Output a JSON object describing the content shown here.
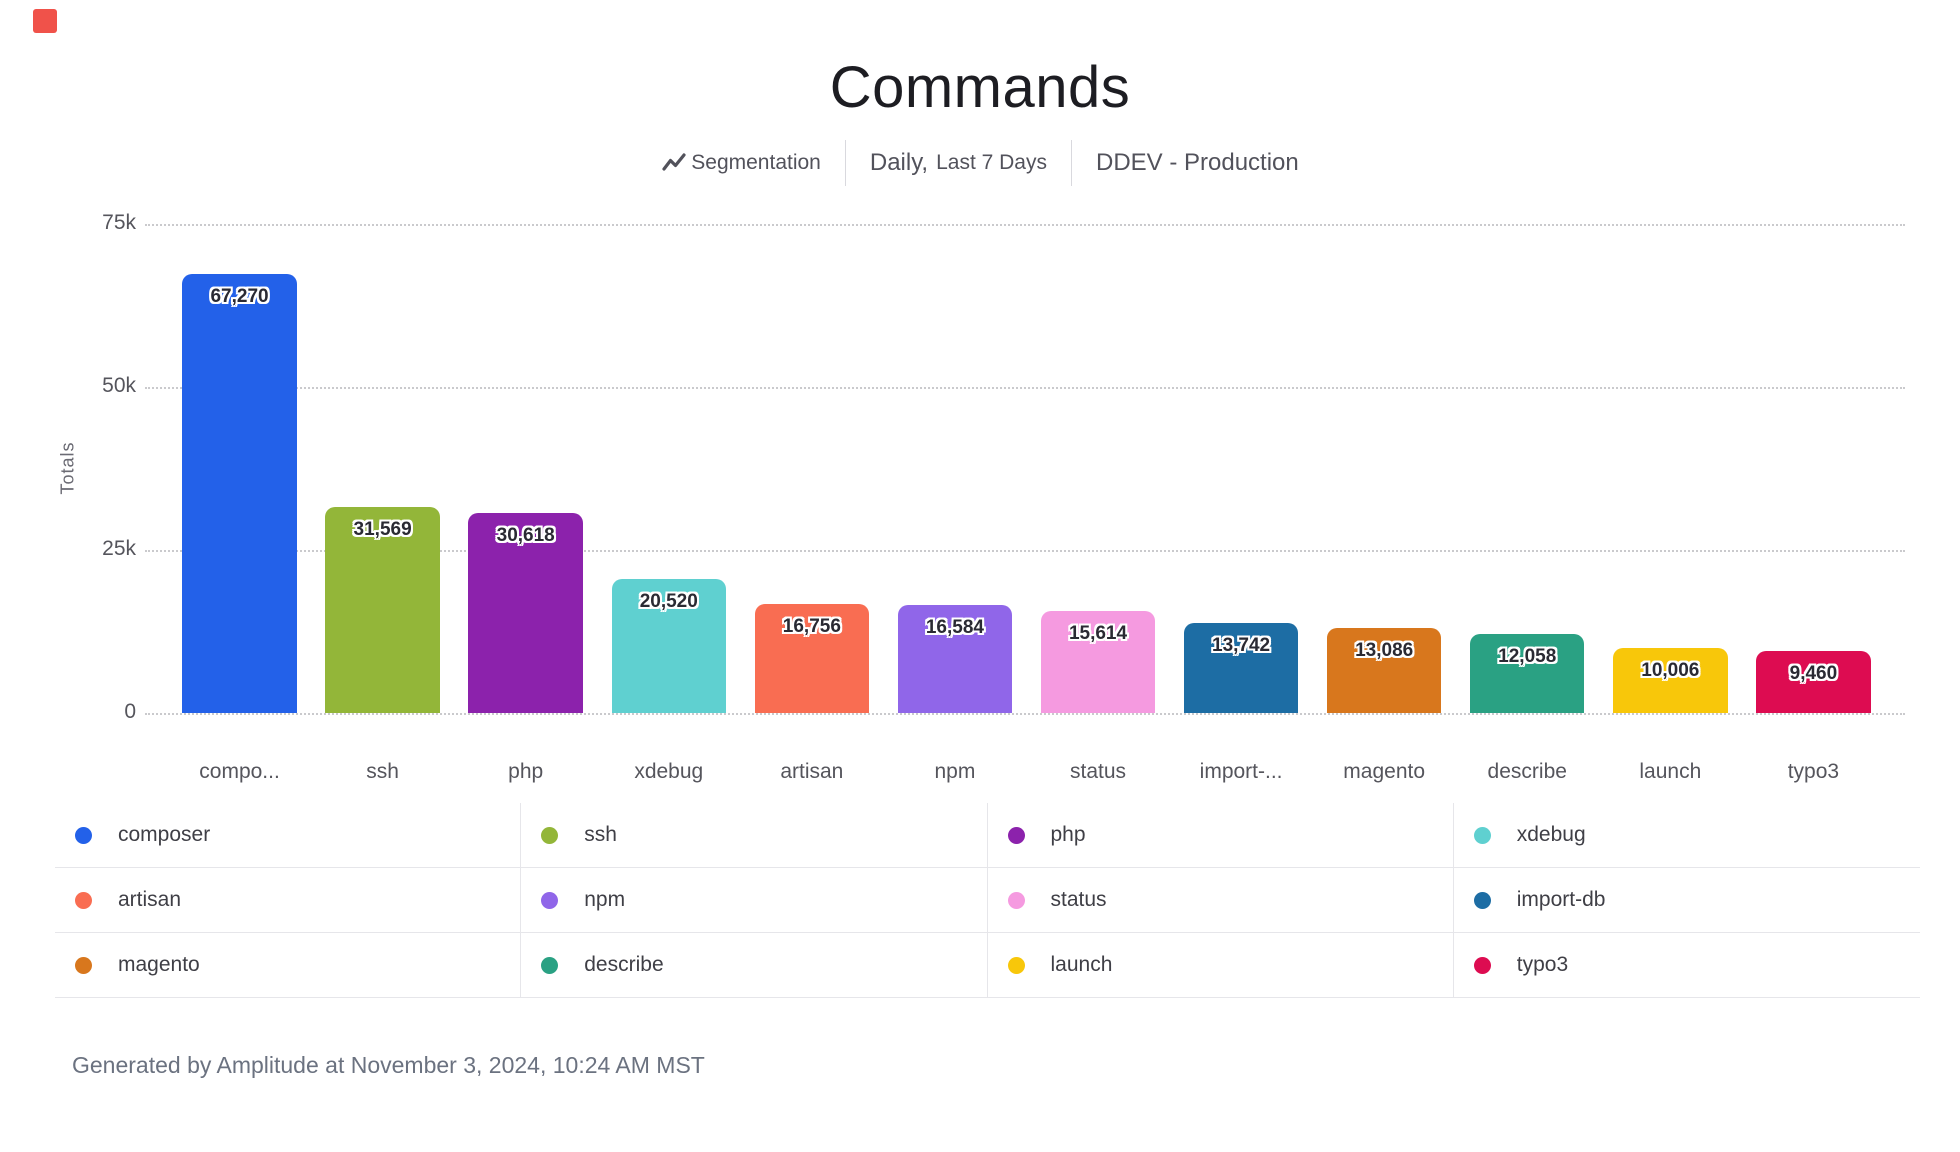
{
  "logo": {
    "color": "#f0524a"
  },
  "header": {
    "title": "Commands",
    "segmentation_label": "Segmentation",
    "period_primary": "Daily,",
    "period_secondary": "Last 7 Days",
    "project": "DDEV - Production"
  },
  "chart_data": {
    "type": "bar",
    "title": "Commands",
    "ylabel": "Totals",
    "ylim": [
      0,
      75000
    ],
    "grid": "horizontal-dotted",
    "legend_position": "bottom",
    "y_ticks": [
      {
        "label": "75k",
        "value": 75000
      },
      {
        "label": "50k",
        "value": 50000
      },
      {
        "label": "25k",
        "value": 25000
      },
      {
        "label": "0",
        "value": 0
      }
    ],
    "bars": [
      {
        "category": "composer",
        "x_tick_label": "compo...",
        "value": 67270,
        "value_label": "67,270",
        "color": "#2361e9"
      },
      {
        "category": "ssh",
        "x_tick_label": "ssh",
        "value": 31569,
        "value_label": "31,569",
        "color": "#93b639"
      },
      {
        "category": "php",
        "x_tick_label": "php",
        "value": 30618,
        "value_label": "30,618",
        "color": "#8c22ac"
      },
      {
        "category": "xdebug",
        "x_tick_label": "xdebug",
        "value": 20520,
        "value_label": "20,520",
        "color": "#5fd0d0"
      },
      {
        "category": "artisan",
        "x_tick_label": "artisan",
        "value": 16756,
        "value_label": "16,756",
        "color": "#f96d52"
      },
      {
        "category": "npm",
        "x_tick_label": "npm",
        "value": 16584,
        "value_label": "16,584",
        "color": "#9066e9"
      },
      {
        "category": "status",
        "x_tick_label": "status",
        "value": 15614,
        "value_label": "15,614",
        "color": "#f59ae0"
      },
      {
        "category": "import-db",
        "x_tick_label": "import-...",
        "value": 13742,
        "value_label": "13,742",
        "color": "#1d6da4"
      },
      {
        "category": "magento",
        "x_tick_label": "magento",
        "value": 13086,
        "value_label": "13,086",
        "color": "#d8771d"
      },
      {
        "category": "describe",
        "x_tick_label": "describe",
        "value": 12058,
        "value_label": "12,058",
        "color": "#2aa183"
      },
      {
        "category": "launch",
        "x_tick_label": "launch",
        "value": 10006,
        "value_label": "10,006",
        "color": "#f8c70a"
      },
      {
        "category": "typo3",
        "x_tick_label": "typo3",
        "value": 9460,
        "value_label": "9,460",
        "color": "#dd0c51"
      }
    ]
  },
  "legend": {
    "items": [
      {
        "label": "composer",
        "color": "#2361e9"
      },
      {
        "label": "ssh",
        "color": "#93b639"
      },
      {
        "label": "php",
        "color": "#8c22ac"
      },
      {
        "label": "xdebug",
        "color": "#5fd0d0"
      },
      {
        "label": "artisan",
        "color": "#f96d52"
      },
      {
        "label": "npm",
        "color": "#9066e9"
      },
      {
        "label": "status",
        "color": "#f59ae0"
      },
      {
        "label": "import-db",
        "color": "#1d6da4"
      },
      {
        "label": "magento",
        "color": "#d8771d"
      },
      {
        "label": "describe",
        "color": "#2aa183"
      },
      {
        "label": "launch",
        "color": "#f8c70a"
      },
      {
        "label": "typo3",
        "color": "#dd0c51"
      }
    ]
  },
  "footer": {
    "text": "Generated by Amplitude at November 3, 2024, 10:24 AM MST"
  }
}
